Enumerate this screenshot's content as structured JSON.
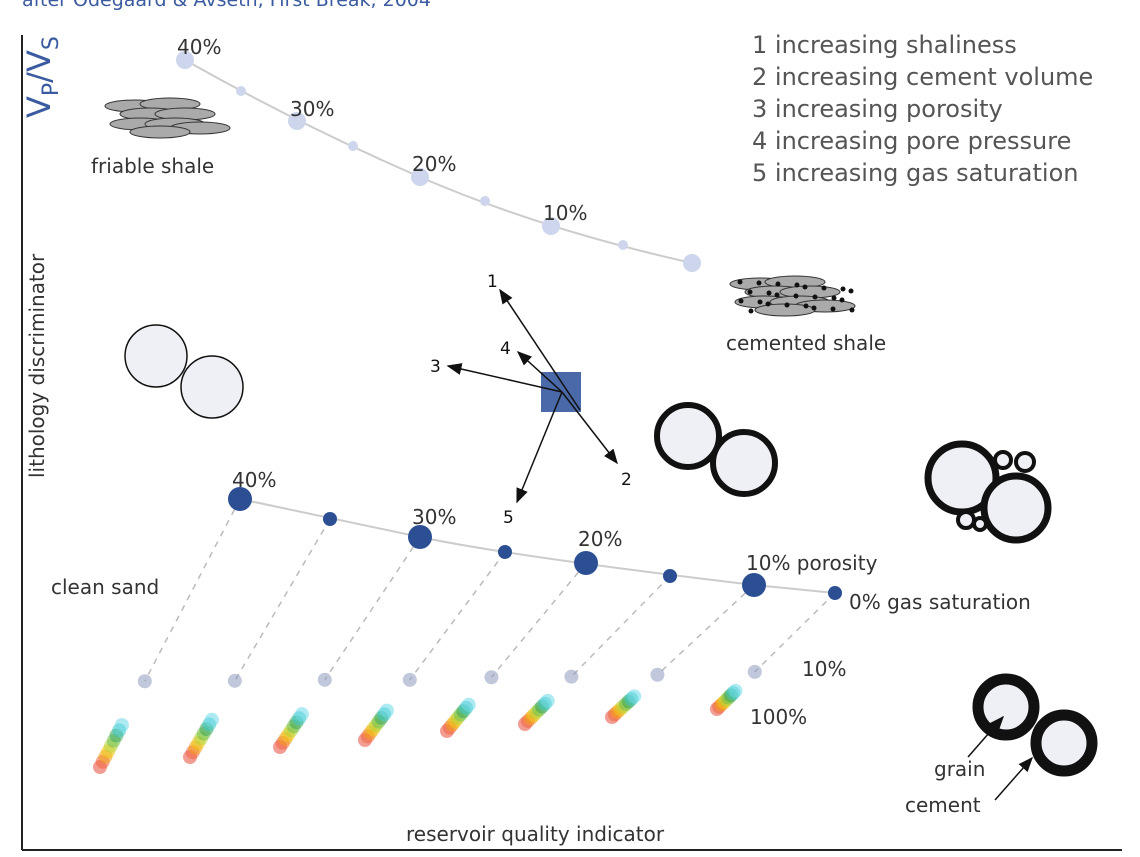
{
  "header": {
    "credit": "after Odegaard & Avseth, First Break, 2004"
  },
  "axes": {
    "y_ratio": {
      "v1": "V",
      "sub1": "P",
      "v2": "/V",
      "sub2": "S"
    },
    "y_label": "lithology discriminator",
    "x_label": "reservoir quality indicator"
  },
  "shale": {
    "porosity_labels": [
      "40%",
      "30%",
      "20%",
      "10%"
    ],
    "friable": "friable shale",
    "cemented": "cemented shale"
  },
  "legend": [
    "1 increasing shaliness",
    "2 increasing cement volume",
    "3 increasing porosity",
    "4 increasing pore pressure",
    "5 increasing gas saturation"
  ],
  "arrows": [
    "1",
    "2",
    "3",
    "4",
    "5"
  ],
  "sand": {
    "porosity_labels": [
      "40%",
      "30%",
      "20%",
      "10% porosity"
    ],
    "gas_label": "0% gas saturation",
    "clean": "clean sand",
    "sat_low": "10%",
    "sat_high": "100%"
  },
  "grains": {
    "grain": "grain",
    "cement": "cement"
  }
}
